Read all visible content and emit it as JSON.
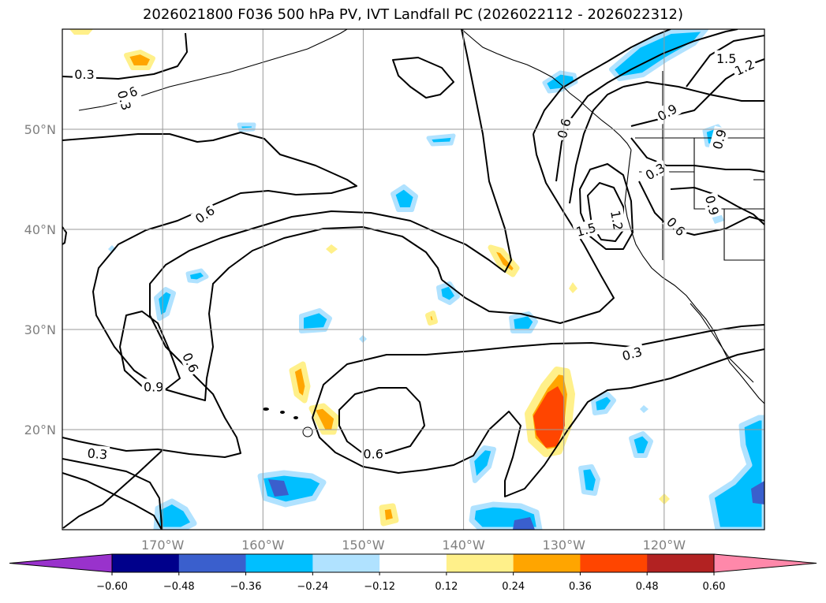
{
  "title": "2026021800 F036 500 hPa PV, IVT Landfall PC (2026022112 - 2026022312)",
  "chart_data": {
    "type": "contour-map",
    "title": "2026021800 F036 500 hPa PV, IVT Landfall PC (2026022112 - 2026022312)",
    "field_contoured": "500 hPa PV",
    "field_shaded": "IVT Landfall PC",
    "lon_range": [
      -180,
      -110
    ],
    "lat_range": [
      10,
      60
    ],
    "lon_ticks": [
      {
        "value": -170,
        "label": "170°W"
      },
      {
        "value": -160,
        "label": "160°W"
      },
      {
        "value": -150,
        "label": "150°W"
      },
      {
        "value": -140,
        "label": "140°W"
      },
      {
        "value": -130,
        "label": "130°W"
      },
      {
        "value": -120,
        "label": "120°W"
      }
    ],
    "lat_ticks": [
      {
        "value": 20,
        "label": "20°N"
      },
      {
        "value": 30,
        "label": "30°N"
      },
      {
        "value": 40,
        "label": "40°N"
      },
      {
        "value": 50,
        "label": "50°N"
      }
    ],
    "gridlines": true,
    "colorbar": {
      "extend": "both",
      "levels": [
        -0.72,
        -0.6,
        -0.48,
        -0.36,
        -0.24,
        -0.12,
        0.12,
        0.24,
        0.36,
        0.48,
        0.6,
        0.72
      ],
      "tick_labels": [
        "−0.60",
        "−0.48",
        "−0.36",
        "−0.24",
        "−0.12",
        "0.12",
        "0.24",
        "0.36",
        "0.48",
        "0.60"
      ],
      "colors": [
        "#9932cc",
        "#00008b",
        "#3a5fcd",
        "#00bfff",
        "#b0e2ff",
        "#ffffff",
        "#fff08a",
        "#ffa500",
        "#ff4500",
        "#b22222",
        "#ff88aa"
      ],
      "under_color": "#9932cc",
      "over_color": "#ff88aa"
    },
    "contour_labels": [
      {
        "text": "0.3",
        "lon": -177.8,
        "lat": 55.5,
        "angle": 0
      },
      {
        "text": "0.6",
        "lon": -173.5,
        "lat": 53.5,
        "angle": -25
      },
      {
        "text": "0.3",
        "lon": -173.8,
        "lat": 52.9,
        "angle": 75
      },
      {
        "text": "0.6",
        "lon": -165.8,
        "lat": 41.5,
        "angle": -35
      },
      {
        "text": "0.6",
        "lon": -167.2,
        "lat": 26.7,
        "angle": 65
      },
      {
        "text": "0.9",
        "lon": -170.9,
        "lat": 24.3,
        "angle": 0
      },
      {
        "text": "0.3",
        "lon": -176.5,
        "lat": 17.6,
        "angle": 5
      },
      {
        "text": "0.6",
        "lon": -149.0,
        "lat": 17.6,
        "angle": 0
      },
      {
        "text": "0.3",
        "lon": -123.2,
        "lat": 27.6,
        "angle": -15
      },
      {
        "text": "0.6",
        "lon": -130.0,
        "lat": 50.1,
        "angle": -75
      },
      {
        "text": "1.5",
        "lon": -127.8,
        "lat": 40.0,
        "angle": -15
      },
      {
        "text": "1.2",
        "lon": -124.7,
        "lat": 40.9,
        "angle": 80
      },
      {
        "text": "0.3",
        "lon": -120.9,
        "lat": 45.8,
        "angle": -30
      },
      {
        "text": "0.6",
        "lon": -118.8,
        "lat": 40.3,
        "angle": 45
      },
      {
        "text": "0.9",
        "lon": -115.2,
        "lat": 42.4,
        "angle": 75
      },
      {
        "text": "0.9",
        "lon": -114.5,
        "lat": 49.0,
        "angle": -75
      },
      {
        "text": "0.9",
        "lon": -119.7,
        "lat": 51.7,
        "angle": -30
      },
      {
        "text": "1.2",
        "lon": -112.0,
        "lat": 56.2,
        "angle": -25
      },
      {
        "text": "1.5",
        "lon": -113.8,
        "lat": 57.1,
        "angle": 0
      }
    ]
  }
}
